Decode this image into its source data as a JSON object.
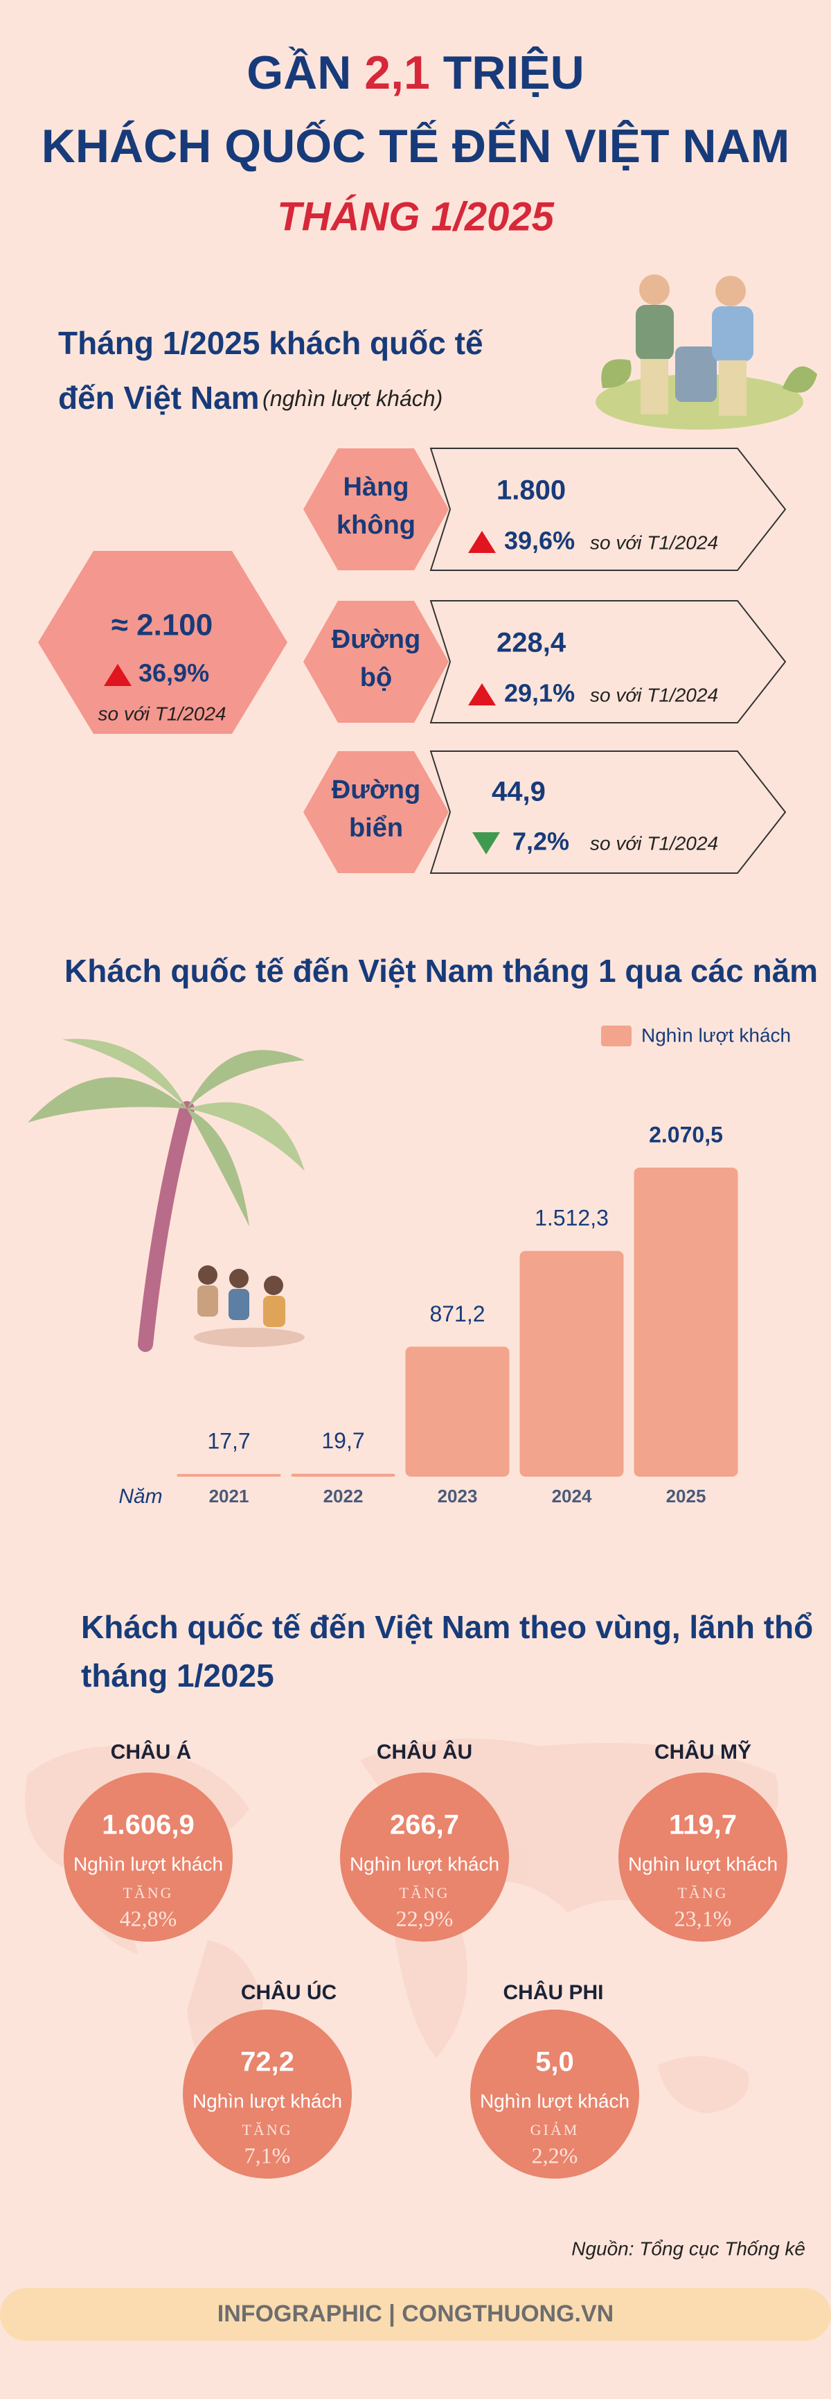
{
  "header": {
    "title_line1": [
      "GẦN",
      "2,1",
      "TRIỆU"
    ],
    "title_line2": "KHÁCH QUỐC TẾ ĐẾN VIỆT NAM",
    "title_line3": "THÁNG 1/2025"
  },
  "summary": {
    "heading_line1": "Tháng 1/2025 khách quốc tế",
    "heading_line2": "đến Việt Nam",
    "unit": "(nghìn lượt khách)",
    "total": {
      "value": "≈ 2.100",
      "change": "36,9%",
      "compare": "so với T1/2024"
    },
    "modes": [
      {
        "name": [
          "Hàng",
          "không"
        ],
        "value": "1.800",
        "change": "39,6%",
        "compare": "so với T1/2024"
      },
      {
        "name": [
          "Đường",
          "bộ"
        ],
        "value": "228,4",
        "change": "29,1%",
        "compare": "so với T1/2024"
      },
      {
        "name": [
          "Đường",
          "biển"
        ],
        "value": "44,9",
        "change": "7,2%",
        "compare": "so với T1/2024"
      }
    ]
  },
  "chart_data": {
    "type": "bar",
    "title": "Khách quốc tế đến Việt Nam tháng 1 qua các năm",
    "x_label": "Năm",
    "categories": [
      "2021",
      "2022",
      "2023",
      "2024",
      "2025"
    ],
    "series": [
      {
        "name": "Nghìn lượt khách",
        "color": "#f2a48c",
        "values": [
          17.7,
          19.7,
          871.2,
          1512.3,
          2070.5
        ],
        "value_labels": [
          "17,7",
          "19,7",
          "871,2",
          "1.512,3",
          "2.070,5"
        ]
      }
    ]
  },
  "regions": {
    "heading_line1": "Khách quốc tế đến Việt Nam theo vùng, lãnh thổ",
    "heading_line2": "tháng 1/2025",
    "items": [
      {
        "name": "CHÂU Á",
        "value": "1.606,9",
        "unit": "Nghìn lượt khách",
        "trend": "TĂNG",
        "change": "42,8%"
      },
      {
        "name": "CHÂU ÂU",
        "value": "266,7",
        "unit": "Nghìn lượt khách",
        "trend": "TĂNG",
        "change": "22,9%"
      },
      {
        "name": "CHÂU MỸ",
        "value": "119,7",
        "unit": "Nghìn lượt khách",
        "trend": "TĂNG",
        "change": "23,1%"
      },
      {
        "name": "CHÂU ÚC",
        "value": "72,2",
        "unit": "Nghìn lượt khách",
        "trend": "TĂNG",
        "change": "7,1%"
      },
      {
        "name": "CHÂU PHI",
        "value": "5,0",
        "unit": "Nghìn lượt khách",
        "trend": "GIẢM",
        "change": "2,2%"
      }
    ]
  },
  "source": "Nguồn: Tổng cục Thống kê",
  "footer": "INFOGRAPHIC | CONGTHUONG.VN"
}
